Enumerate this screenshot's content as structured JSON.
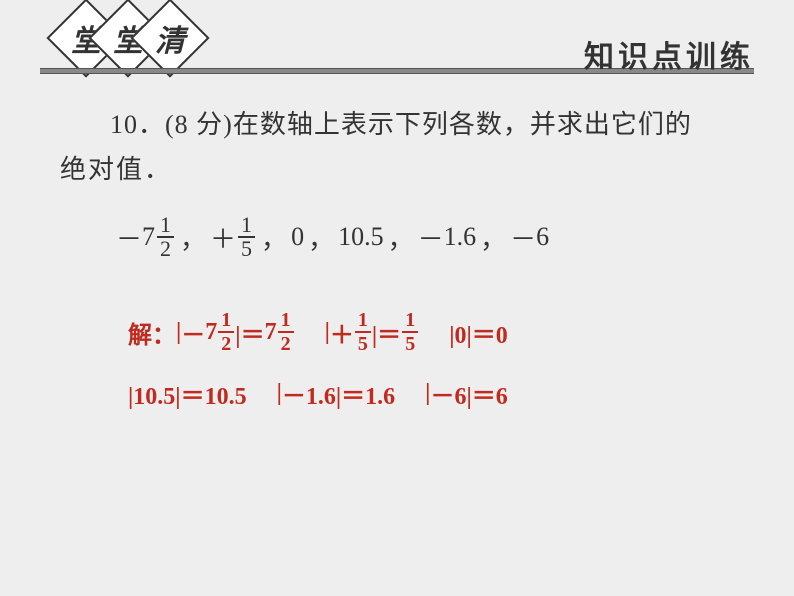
{
  "header": {
    "diamond1": "堂",
    "diamond2": "堂",
    "diamond3": "清",
    "subtitle": "知识点训练"
  },
  "problem": {
    "line1": "10．(8 分)在数轴上表示下列各数，并求出它们的",
    "line2": "绝对值．"
  },
  "numbers": {
    "n1_sign": "－",
    "n1_whole": "7",
    "n1_num": "1",
    "n1_den": "2",
    "sep": "，",
    "n2_sign": "＋",
    "n2_num": "1",
    "n2_den": "5",
    "n3": "0",
    "n4": "10.5",
    "n5_sign": "－",
    "n5_val": "1.6",
    "n6_sign": "－",
    "n6_val": "6"
  },
  "solution": {
    "label": "解：",
    "r1a_pre": "|",
    "r1a_sign": "－",
    "r1a_whole": "7",
    "r1a_num": "1",
    "r1a_den": "2",
    "r1a_mid": "|＝",
    "r1a_rwhole": "7",
    "r1a_rnum": "1",
    "r1a_rden": "2",
    "r1b_pre": "|",
    "r1b_sign": "＋",
    "r1b_num": "1",
    "r1b_den": "5",
    "r1b_mid": "|＝",
    "r1b_rnum": "1",
    "r1b_rden": "5",
    "r1c": "|0|＝0",
    "r2a": "|10.5|＝10.5",
    "r2b_pre": "|",
    "r2b_sign": "－",
    "r2b_val": "1.6|＝1.6",
    "r2c_pre": "|",
    "r2c_sign": "－",
    "r2c_val": "6|＝6"
  },
  "style": {
    "bg": "#eeeeee",
    "text_color": "#333333",
    "solution_color": "#c12a1e",
    "rule_color": "#888888",
    "body_fontsize": 26,
    "solution_fontsize": 24
  }
}
